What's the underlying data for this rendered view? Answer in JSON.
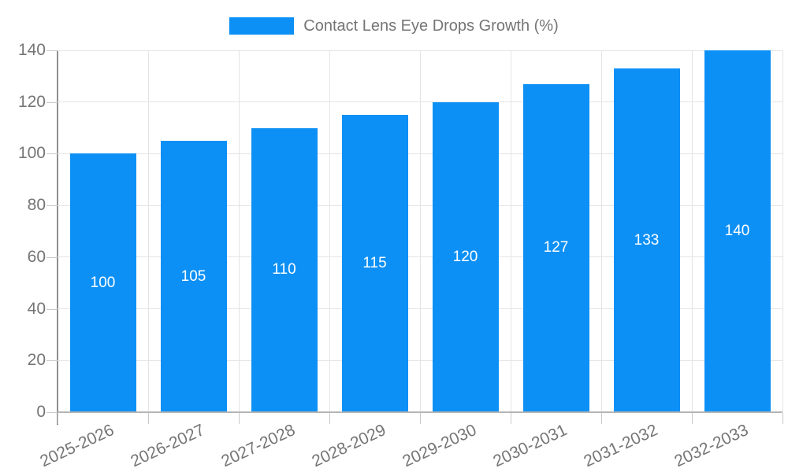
{
  "chart_data": {
    "type": "bar",
    "title": "Contact Lens Eye Drops Growth (%)",
    "categories": [
      "2025-2026",
      "2026-2027",
      "2027-2028",
      "2028-2029",
      "2029-2030",
      "2030-2031",
      "2031-2032",
      "2032-2033"
    ],
    "values": [
      100,
      105,
      110,
      115,
      120,
      127,
      133,
      140
    ],
    "xlabel": "",
    "ylabel": "",
    "ylim": [
      0,
      140
    ],
    "yticks": [
      0,
      20,
      40,
      60,
      80,
      100,
      120,
      140
    ],
    "grid": true,
    "legend_position": "top",
    "legend_label": "Contact Lens Eye Drops Growth (%)",
    "bar_color": "#0d90f5",
    "value_label_color": "#ffffff",
    "axis_text_color": "#757575",
    "grid_color": "#e4e4e4",
    "axis_line_color": "#8f8f8f",
    "baseline_color": "#b5b5b5",
    "tick_color": "#c9c9c9"
  }
}
